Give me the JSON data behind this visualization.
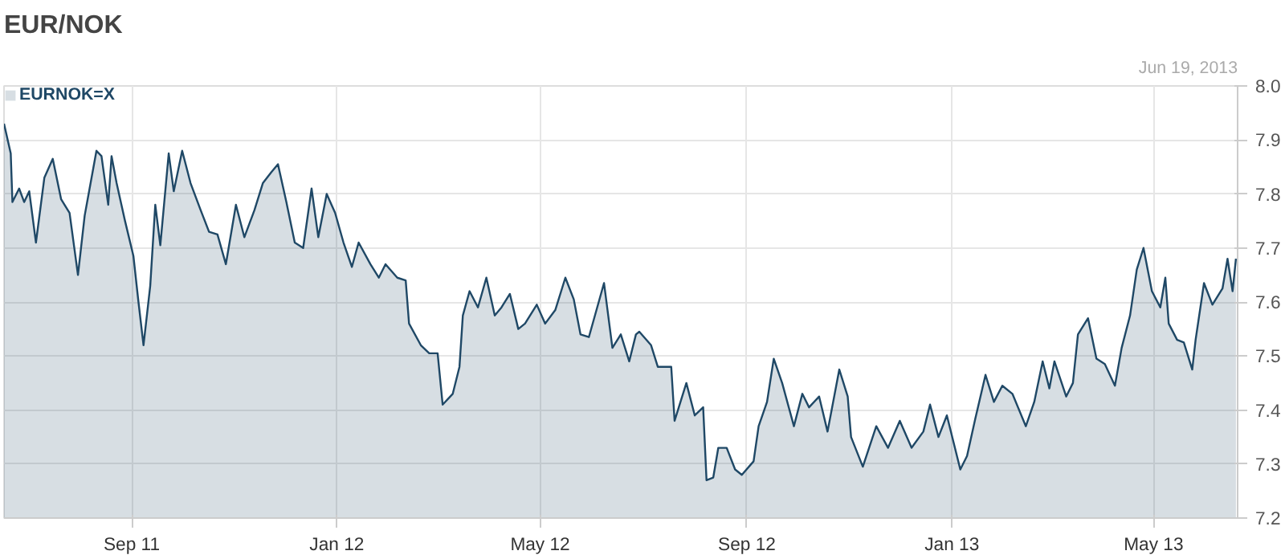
{
  "chart_data": {
    "type": "area",
    "title": "EUR/NOK",
    "annotations": [
      "Jun 19, 2013"
    ],
    "x": [
      "2011-06-17",
      "2011-06-21",
      "2011-06-22",
      "2011-06-26",
      "2011-06-29",
      "2011-07-02",
      "2011-07-06",
      "2011-07-11",
      "2011-07-16",
      "2011-07-21",
      "2011-07-26",
      "2011-07-31",
      "2011-08-04",
      "2011-08-11",
      "2011-08-14",
      "2011-08-18",
      "2011-08-20",
      "2011-08-23",
      "2011-08-28",
      "2011-09-02",
      "2011-09-05",
      "2011-09-08",
      "2011-09-12",
      "2011-09-15",
      "2011-09-18",
      "2011-09-23",
      "2011-09-26",
      "2011-10-01",
      "2011-10-06",
      "2011-10-12",
      "2011-10-17",
      "2011-10-22",
      "2011-10-27",
      "2011-11-02",
      "2011-11-07",
      "2011-11-13",
      "2011-11-18",
      "2011-11-23",
      "2011-11-27",
      "2011-12-02",
      "2011-12-07",
      "2011-12-12",
      "2011-12-17",
      "2011-12-21",
      "2011-12-26",
      "2011-12-31",
      "2012-01-05",
      "2012-01-10",
      "2012-01-14",
      "2012-01-21",
      "2012-01-26",
      "2012-01-30",
      "2012-02-06",
      "2012-02-11",
      "2012-02-13",
      "2012-02-20",
      "2012-02-25",
      "2012-03-01",
      "2012-03-04",
      "2012-03-10",
      "2012-03-14",
      "2012-03-16",
      "2012-03-20",
      "2012-03-25",
      "2012-03-30",
      "2012-04-04",
      "2012-04-08",
      "2012-04-13",
      "2012-04-18",
      "2012-04-22",
      "2012-04-29",
      "2012-05-04",
      "2012-05-10",
      "2012-05-16",
      "2012-05-21",
      "2012-05-25",
      "2012-05-30",
      "2012-06-08",
      "2012-06-13",
      "2012-06-18",
      "2012-06-23",
      "2012-06-27",
      "2012-06-29",
      "2012-07-06",
      "2012-07-10",
      "2012-07-18",
      "2012-07-20",
      "2012-07-27",
      "2012-08-01",
      "2012-08-06",
      "2012-08-08",
      "2012-08-12",
      "2012-08-15",
      "2012-08-20",
      "2012-08-25",
      "2012-08-29",
      "2012-09-05",
      "2012-09-08",
      "2012-09-13",
      "2012-09-17",
      "2012-09-22",
      "2012-09-29",
      "2012-10-04",
      "2012-10-08",
      "2012-10-14",
      "2012-10-19",
      "2012-10-26",
      "2012-10-31",
      "2012-11-02",
      "2012-11-09",
      "2012-11-17",
      "2012-11-24",
      "2012-12-01",
      "2012-12-08",
      "2012-12-15",
      "2012-12-19",
      "2012-12-24",
      "2012-12-29",
      "2013-01-06",
      "2013-01-10",
      "2013-01-15",
      "2013-01-21",
      "2013-01-26",
      "2013-01-31",
      "2013-02-06",
      "2013-02-14",
      "2013-02-19",
      "2013-02-24",
      "2013-02-28",
      "2013-03-03",
      "2013-03-10",
      "2013-03-14",
      "2013-03-17",
      "2013-03-23",
      "2013-03-28",
      "2013-04-02",
      "2013-04-08",
      "2013-04-12",
      "2013-04-17",
      "2013-04-21",
      "2013-04-25",
      "2013-04-30",
      "2013-05-05",
      "2013-05-08",
      "2013-05-10",
      "2013-05-15",
      "2013-05-19",
      "2013-05-24",
      "2013-05-26",
      "2013-05-31",
      "2013-06-05",
      "2013-06-11",
      "2013-06-14",
      "2013-06-17",
      "2013-06-19"
    ],
    "series": [
      {
        "name": "EURNOK=X",
        "color": "#1f4866",
        "values": [
          7.93,
          7.875,
          7.785,
          7.81,
          7.785,
          7.805,
          7.71,
          7.83,
          7.865,
          7.79,
          7.765,
          7.65,
          7.76,
          7.88,
          7.87,
          7.78,
          7.87,
          7.82,
          7.75,
          7.685,
          7.6,
          7.52,
          7.63,
          7.78,
          7.705,
          7.875,
          7.805,
          7.88,
          7.82,
          7.77,
          7.73,
          7.725,
          7.67,
          7.78,
          7.72,
          7.77,
          7.82,
          7.84,
          7.855,
          7.785,
          7.71,
          7.7,
          7.81,
          7.72,
          7.8,
          7.765,
          7.71,
          7.665,
          7.71,
          7.67,
          7.645,
          7.67,
          7.645,
          7.64,
          7.56,
          7.52,
          7.505,
          7.505,
          7.41,
          7.43,
          7.48,
          7.575,
          7.62,
          7.59,
          7.645,
          7.575,
          7.59,
          7.615,
          7.55,
          7.56,
          7.595,
          7.56,
          7.585,
          7.645,
          7.605,
          7.54,
          7.535,
          7.635,
          7.515,
          7.54,
          7.49,
          7.54,
          7.545,
          7.52,
          7.48,
          7.48,
          7.38,
          7.45,
          7.39,
          7.405,
          7.27,
          7.275,
          7.33,
          7.33,
          7.29,
          7.28,
          7.305,
          7.37,
          7.415,
          7.495,
          7.45,
          7.37,
          7.43,
          7.405,
          7.425,
          7.36,
          7.475,
          7.425,
          7.35,
          7.295,
          7.37,
          7.33,
          7.38,
          7.33,
          7.36,
          7.41,
          7.35,
          7.39,
          7.29,
          7.315,
          7.385,
          7.465,
          7.415,
          7.445,
          7.43,
          7.37,
          7.415,
          7.49,
          7.44,
          7.49,
          7.425,
          7.45,
          7.54,
          7.57,
          7.495,
          7.485,
          7.445,
          7.515,
          7.575,
          7.66,
          7.7,
          7.62,
          7.59,
          7.645,
          7.56,
          7.53,
          7.525,
          7.475,
          7.53,
          7.635,
          7.595,
          7.625,
          7.68,
          7.62,
          7.68
        ]
      }
    ],
    "xlim": [
      "2011-06-17",
      "2013-06-20"
    ],
    "xticks": [
      {
        "value": "2011-09-01",
        "label": "Sep 11"
      },
      {
        "value": "2012-01-01",
        "label": "Jan 12"
      },
      {
        "value": "2012-05-01",
        "label": "May 12"
      },
      {
        "value": "2012-09-01",
        "label": "Sep 12"
      },
      {
        "value": "2013-01-01",
        "label": "Jan 13"
      },
      {
        "value": "2013-05-01",
        "label": "May 13"
      }
    ],
    "ylim": [
      7.2,
      8.0
    ],
    "yticks": [
      7.2,
      7.3,
      7.4,
      7.5,
      7.6,
      7.7,
      7.8,
      7.9,
      {
        "value": 8.0,
        "label": "8.0"
      }
    ],
    "grid": true,
    "legend": "top left",
    "marker": "none",
    "line_style": "solid"
  }
}
